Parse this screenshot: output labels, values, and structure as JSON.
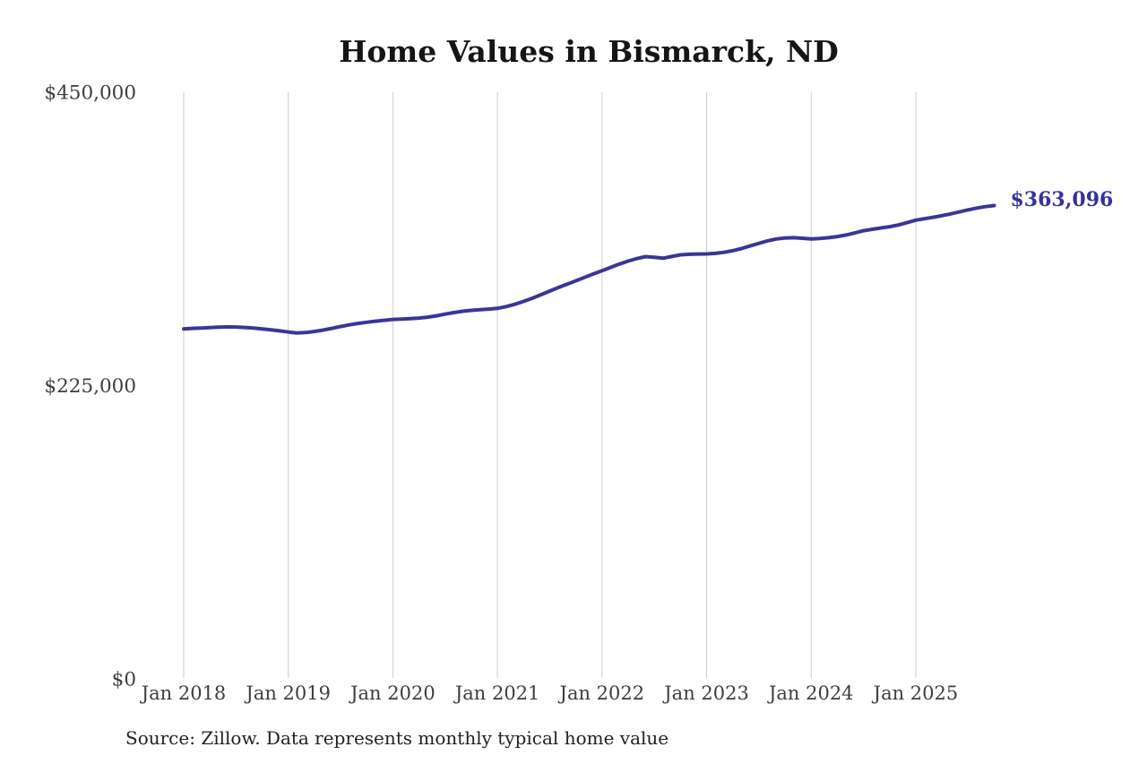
{
  "title": "Home Values in Bismarck, ND",
  "source_note": "Source: Zillow. Data represents monthly typical home value",
  "chart_data": {
    "type": "line",
    "title": "Home Values in Bismarck, ND",
    "series_name": "Monthly typical home value",
    "x": [
      "2018-01",
      "2018-02",
      "2018-03",
      "2018-04",
      "2018-05",
      "2018-06",
      "2018-07",
      "2018-08",
      "2018-09",
      "2018-10",
      "2018-11",
      "2018-12",
      "2019-01",
      "2019-02",
      "2019-03",
      "2019-04",
      "2019-05",
      "2019-06",
      "2019-07",
      "2019-08",
      "2019-09",
      "2019-10",
      "2019-11",
      "2019-12",
      "2020-01",
      "2020-02",
      "2020-03",
      "2020-04",
      "2020-05",
      "2020-06",
      "2020-07",
      "2020-08",
      "2020-09",
      "2020-10",
      "2020-11",
      "2020-12",
      "2021-01",
      "2021-02",
      "2021-03",
      "2021-04",
      "2021-05",
      "2021-06",
      "2021-07",
      "2021-08",
      "2021-09",
      "2021-10",
      "2021-11",
      "2021-12",
      "2022-01",
      "2022-02",
      "2022-03",
      "2022-04",
      "2022-05",
      "2022-06",
      "2022-07",
      "2022-08",
      "2022-09",
      "2022-10",
      "2022-11",
      "2022-12",
      "2023-01",
      "2023-02",
      "2023-03",
      "2023-04",
      "2023-05",
      "2023-06",
      "2023-07",
      "2023-08",
      "2023-09",
      "2023-10",
      "2023-11",
      "2023-12",
      "2024-01",
      "2024-02",
      "2024-03",
      "2024-04",
      "2024-05",
      "2024-06",
      "2024-07",
      "2024-08",
      "2024-09",
      "2024-10",
      "2024-11",
      "2024-12",
      "2025-01",
      "2025-02",
      "2025-03",
      "2025-04",
      "2025-05",
      "2025-06",
      "2025-07",
      "2025-08",
      "2025-09",
      "2025-10"
    ],
    "values": [
      268500,
      268900,
      269200,
      269500,
      269800,
      270000,
      269900,
      269600,
      269100,
      268500,
      267800,
      267000,
      266100,
      265400,
      265700,
      266500,
      267600,
      268900,
      270300,
      271600,
      272700,
      273600,
      274400,
      275100,
      275800,
      276000,
      276300,
      276800,
      277500,
      278500,
      279800,
      281000,
      282000,
      282700,
      283200,
      283700,
      284200,
      285600,
      287400,
      289600,
      292000,
      294700,
      297500,
      300200,
      302800,
      305400,
      308000,
      310600,
      313100,
      315700,
      318200,
      320500,
      322400,
      323900,
      323400,
      322700,
      324000,
      325300,
      325700,
      325900,
      326000,
      326400,
      327200,
      328500,
      330100,
      332100,
      334100,
      336000,
      337500,
      338200,
      338400,
      338000,
      337500,
      337900,
      338400,
      339300,
      340500,
      342100,
      343800,
      344900,
      345900,
      346900,
      348200,
      350000,
      351900,
      353000,
      354100,
      355300,
      356700,
      358200,
      359800,
      361200,
      362300,
      363096
    ],
    "x_tick_labels": [
      "Jan 2018",
      "Jan 2019",
      "Jan 2020",
      "Jan 2021",
      "Jan 2022",
      "Jan 2023",
      "Jan 2024",
      "Jan 2025"
    ],
    "y_tick_labels": [
      "$0",
      "$225,000",
      "$450,000"
    ],
    "y_ticks": [
      0,
      225000,
      450000
    ],
    "ylim": [
      0,
      450000
    ],
    "end_label": "$363,096",
    "final_value": 363096,
    "grid": "vertical-only",
    "legend": "none",
    "colors": {
      "line": "#3b3597",
      "end_label": "#33339b",
      "gridline": "#cccccc",
      "tick_label": "#3e3e3e",
      "title": "#151515",
      "source": "#222222",
      "background": "#ffffff"
    }
  }
}
